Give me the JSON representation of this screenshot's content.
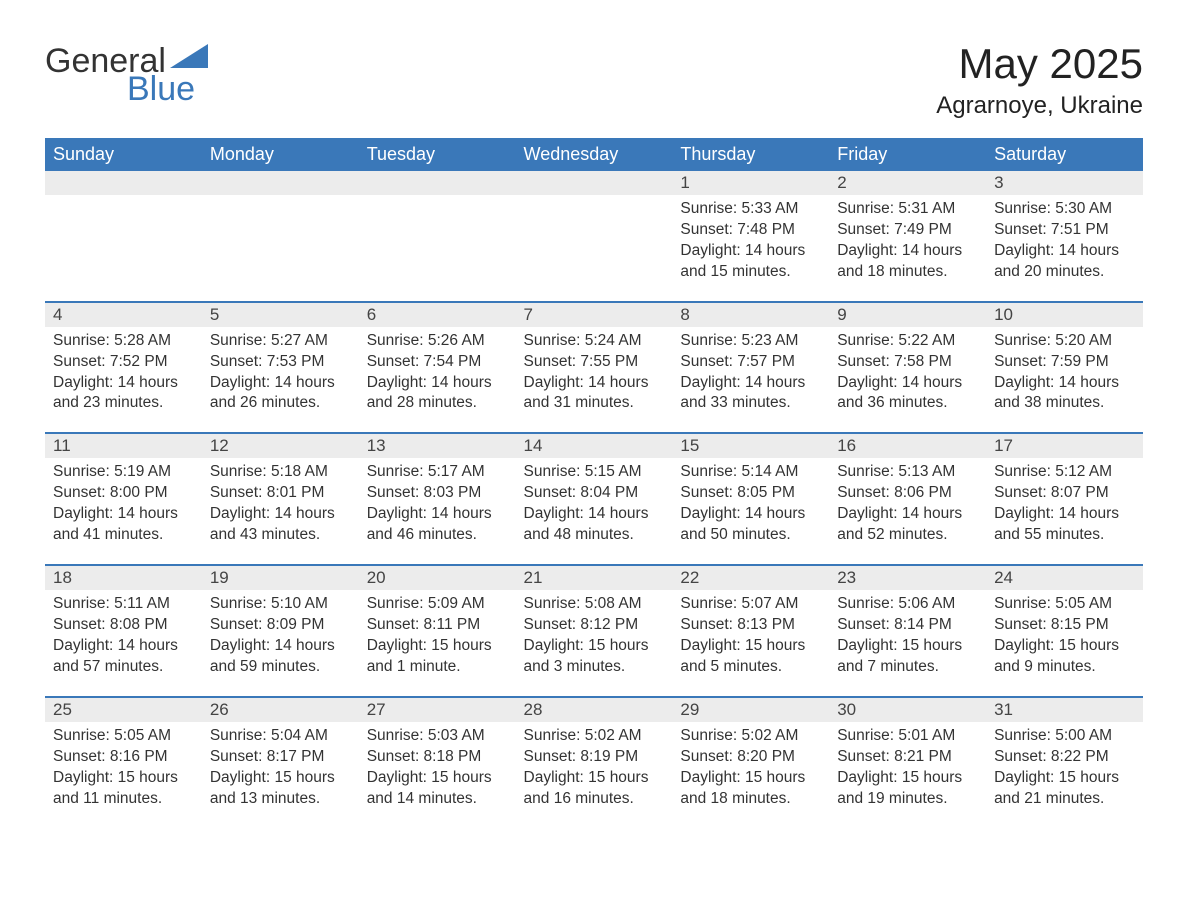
{
  "logo": {
    "word1": "General",
    "word2": "Blue",
    "accent_color": "#3a78b9"
  },
  "title": "May 2025",
  "location": "Agrarnoye, Ukraine",
  "header_bg": "#3a78b9",
  "header_fg": "#ffffff",
  "stripe_bg": "#ececec",
  "day_headers": [
    "Sunday",
    "Monday",
    "Tuesday",
    "Wednesday",
    "Thursday",
    "Friday",
    "Saturday"
  ],
  "weeks": [
    [
      null,
      null,
      null,
      null,
      {
        "n": "1",
        "sunrise": "5:33 AM",
        "sunset": "7:48 PM",
        "daylight": "14 hours and 15 minutes."
      },
      {
        "n": "2",
        "sunrise": "5:31 AM",
        "sunset": "7:49 PM",
        "daylight": "14 hours and 18 minutes."
      },
      {
        "n": "3",
        "sunrise": "5:30 AM",
        "sunset": "7:51 PM",
        "daylight": "14 hours and 20 minutes."
      }
    ],
    [
      {
        "n": "4",
        "sunrise": "5:28 AM",
        "sunset": "7:52 PM",
        "daylight": "14 hours and 23 minutes."
      },
      {
        "n": "5",
        "sunrise": "5:27 AM",
        "sunset": "7:53 PM",
        "daylight": "14 hours and 26 minutes."
      },
      {
        "n": "6",
        "sunrise": "5:26 AM",
        "sunset": "7:54 PM",
        "daylight": "14 hours and 28 minutes."
      },
      {
        "n": "7",
        "sunrise": "5:24 AM",
        "sunset": "7:55 PM",
        "daylight": "14 hours and 31 minutes."
      },
      {
        "n": "8",
        "sunrise": "5:23 AM",
        "sunset": "7:57 PM",
        "daylight": "14 hours and 33 minutes."
      },
      {
        "n": "9",
        "sunrise": "5:22 AM",
        "sunset": "7:58 PM",
        "daylight": "14 hours and 36 minutes."
      },
      {
        "n": "10",
        "sunrise": "5:20 AM",
        "sunset": "7:59 PM",
        "daylight": "14 hours and 38 minutes."
      }
    ],
    [
      {
        "n": "11",
        "sunrise": "5:19 AM",
        "sunset": "8:00 PM",
        "daylight": "14 hours and 41 minutes."
      },
      {
        "n": "12",
        "sunrise": "5:18 AM",
        "sunset": "8:01 PM",
        "daylight": "14 hours and 43 minutes."
      },
      {
        "n": "13",
        "sunrise": "5:17 AM",
        "sunset": "8:03 PM",
        "daylight": "14 hours and 46 minutes."
      },
      {
        "n": "14",
        "sunrise": "5:15 AM",
        "sunset": "8:04 PM",
        "daylight": "14 hours and 48 minutes."
      },
      {
        "n": "15",
        "sunrise": "5:14 AM",
        "sunset": "8:05 PM",
        "daylight": "14 hours and 50 minutes."
      },
      {
        "n": "16",
        "sunrise": "5:13 AM",
        "sunset": "8:06 PM",
        "daylight": "14 hours and 52 minutes."
      },
      {
        "n": "17",
        "sunrise": "5:12 AM",
        "sunset": "8:07 PM",
        "daylight": "14 hours and 55 minutes."
      }
    ],
    [
      {
        "n": "18",
        "sunrise": "5:11 AM",
        "sunset": "8:08 PM",
        "daylight": "14 hours and 57 minutes."
      },
      {
        "n": "19",
        "sunrise": "5:10 AM",
        "sunset": "8:09 PM",
        "daylight": "14 hours and 59 minutes."
      },
      {
        "n": "20",
        "sunrise": "5:09 AM",
        "sunset": "8:11 PM",
        "daylight": "15 hours and 1 minute."
      },
      {
        "n": "21",
        "sunrise": "5:08 AM",
        "sunset": "8:12 PM",
        "daylight": "15 hours and 3 minutes."
      },
      {
        "n": "22",
        "sunrise": "5:07 AM",
        "sunset": "8:13 PM",
        "daylight": "15 hours and 5 minutes."
      },
      {
        "n": "23",
        "sunrise": "5:06 AM",
        "sunset": "8:14 PM",
        "daylight": "15 hours and 7 minutes."
      },
      {
        "n": "24",
        "sunrise": "5:05 AM",
        "sunset": "8:15 PM",
        "daylight": "15 hours and 9 minutes."
      }
    ],
    [
      {
        "n": "25",
        "sunrise": "5:05 AM",
        "sunset": "8:16 PM",
        "daylight": "15 hours and 11 minutes."
      },
      {
        "n": "26",
        "sunrise": "5:04 AM",
        "sunset": "8:17 PM",
        "daylight": "15 hours and 13 minutes."
      },
      {
        "n": "27",
        "sunrise": "5:03 AM",
        "sunset": "8:18 PM",
        "daylight": "15 hours and 14 minutes."
      },
      {
        "n": "28",
        "sunrise": "5:02 AM",
        "sunset": "8:19 PM",
        "daylight": "15 hours and 16 minutes."
      },
      {
        "n": "29",
        "sunrise": "5:02 AM",
        "sunset": "8:20 PM",
        "daylight": "15 hours and 18 minutes."
      },
      {
        "n": "30",
        "sunrise": "5:01 AM",
        "sunset": "8:21 PM",
        "daylight": "15 hours and 19 minutes."
      },
      {
        "n": "31",
        "sunrise": "5:00 AM",
        "sunset": "8:22 PM",
        "daylight": "15 hours and 21 minutes."
      }
    ]
  ],
  "labels": {
    "sunrise": "Sunrise:",
    "sunset": "Sunset:",
    "daylight": "Daylight:"
  }
}
